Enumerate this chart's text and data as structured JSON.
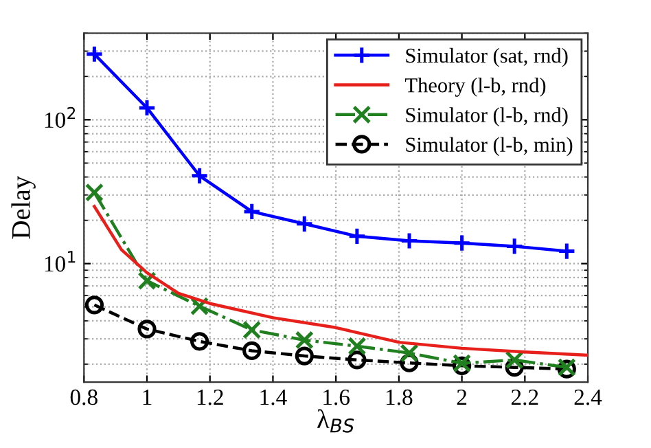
{
  "chart_data": {
    "type": "line",
    "xlabel": "λ$_{BS}$",
    "ylabel": "Delay",
    "log": "y",
    "grid": true,
    "legend": "top right",
    "xlim": [
      0.8,
      2.4
    ],
    "xticks": [
      0.8,
      1,
      1.2,
      1.4,
      1.6,
      1.8,
      2,
      2.2,
      2.4
    ],
    "ylim": [
      1.5,
      400
    ],
    "yticks": [
      {
        "value": 10,
        "label": "10$^{1}$"
      },
      {
        "value": 100,
        "label": "10$^{2}$"
      }
    ],
    "series": [
      {
        "name": "Simulator (sat, rnd)",
        "color": "#0000ff",
        "marker": "plus",
        "line_style": "solid",
        "x": [
          0.833,
          1.0,
          1.167,
          1.333,
          1.5,
          1.667,
          1.833,
          2.0,
          2.167,
          2.333
        ],
        "values": [
          286,
          121,
          40.8,
          23,
          18.9,
          15.5,
          14.4,
          13.9,
          13.2,
          12.2
        ]
      },
      {
        "name": "Theory (l-b, rnd)",
        "color": "#e8201c",
        "marker": "none",
        "line_style": "solid",
        "x": [
          0.833,
          0.919,
          1.0,
          1.1,
          1.2,
          1.4,
          1.6,
          1.8,
          2.0,
          2.2,
          2.4
        ],
        "values": [
          25,
          12.5,
          8.65,
          6.22,
          5.28,
          4.21,
          3.59,
          2.84,
          2.58,
          2.43,
          2.31
        ]
      },
      {
        "name": "Simulator (l-b, rnd)",
        "color": "#208020",
        "marker": "cross",
        "line_style": "dashdot",
        "x": [
          0.833,
          1.0,
          1.167,
          1.333,
          1.5,
          1.667,
          1.833,
          2.0,
          2.167,
          2.333
        ],
        "values": [
          31.2,
          7.6,
          5.06,
          3.46,
          2.94,
          2.67,
          2.39,
          2.03,
          2.14,
          1.9
        ]
      },
      {
        "name": "Simulator (l-b, min)",
        "color": "#000000",
        "marker": "circle",
        "line_style": "dashed",
        "x": [
          0.833,
          1.0,
          1.167,
          1.333,
          1.5,
          1.667,
          1.833,
          2.0,
          2.167,
          2.333
        ],
        "values": [
          5.16,
          3.51,
          2.88,
          2.48,
          2.28,
          2.14,
          2.04,
          1.95,
          1.9,
          1.85
        ]
      }
    ]
  }
}
